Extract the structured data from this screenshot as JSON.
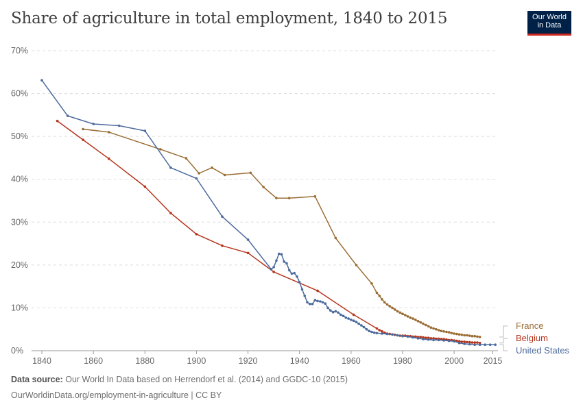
{
  "header": {
    "title": "Share of agriculture in total employment, 1840 to 2015",
    "logo_line1": "Our World",
    "logo_line2": "in Data"
  },
  "footer": {
    "source_label": "Data source:",
    "source_text": "Our World In Data based on Herrendorf et al. (2014) and GGDC-10 (2015)",
    "url_license": "OurWorldinData.org/employment-in-agriculture | CC BY"
  },
  "chart_data": {
    "type": "line",
    "title": "Share of agriculture in total employment, 1840 to 2015",
    "xlim": [
      1836,
      2017
    ],
    "ylim": [
      0,
      70
    ],
    "x_ticks": [
      "1840",
      "1860",
      "1880",
      "1900",
      "1920",
      "1940",
      "1960",
      "1980",
      "2000",
      "2015"
    ],
    "x_tick_values": [
      1840,
      1860,
      1880,
      1900,
      1920,
      1940,
      1960,
      1980,
      2000,
      2015
    ],
    "y_ticks": [
      "0%",
      "10%",
      "20%",
      "30%",
      "40%",
      "50%",
      "60%",
      "70%"
    ],
    "y_tick_values": [
      0,
      10,
      20,
      30,
      40,
      50,
      60,
      70
    ],
    "grid": "horizontal dashed",
    "legend": "right, labels at line ends",
    "series": [
      {
        "name": "France",
        "color": "#9a6d33",
        "points": [
          [
            1856,
            51.7
          ],
          [
            1866,
            51.0
          ],
          [
            1886,
            47.0
          ],
          [
            1896,
            44.9
          ],
          [
            1901,
            41.4
          ],
          [
            1906,
            42.7
          ],
          [
            1911,
            41.0
          ],
          [
            1921,
            41.5
          ],
          [
            1926,
            38.2
          ],
          [
            1931,
            35.6
          ],
          [
            1936,
            35.6
          ],
          [
            1946,
            36.0
          ],
          [
            1954,
            26.3
          ],
          [
            1962,
            20.0
          ],
          [
            1968,
            15.7
          ],
          [
            1970,
            13.5
          ],
          [
            1971,
            12.8
          ],
          [
            1972,
            12.0
          ],
          [
            1973,
            11.3
          ],
          [
            1974,
            10.8
          ],
          [
            1975,
            10.4
          ],
          [
            1976,
            10.0
          ],
          [
            1977,
            9.6
          ],
          [
            1978,
            9.2
          ],
          [
            1979,
            8.9
          ],
          [
            1980,
            8.6
          ],
          [
            1981,
            8.3
          ],
          [
            1982,
            8.0
          ],
          [
            1983,
            7.7
          ],
          [
            1984,
            7.5
          ],
          [
            1985,
            7.2
          ],
          [
            1986,
            6.9
          ],
          [
            1987,
            6.6
          ],
          [
            1988,
            6.3
          ],
          [
            1989,
            6.0
          ],
          [
            1990,
            5.7
          ],
          [
            1991,
            5.4
          ],
          [
            1992,
            5.2
          ],
          [
            1993,
            5.0
          ],
          [
            1994,
            4.8
          ],
          [
            1995,
            4.6
          ],
          [
            1996,
            4.5
          ],
          [
            1997,
            4.4
          ],
          [
            1998,
            4.3
          ],
          [
            1999,
            4.1
          ],
          [
            2000,
            4.0
          ],
          [
            2001,
            3.9
          ],
          [
            2002,
            3.8
          ],
          [
            2003,
            3.7
          ],
          [
            2004,
            3.6
          ],
          [
            2005,
            3.6
          ],
          [
            2006,
            3.5
          ],
          [
            2007,
            3.4
          ],
          [
            2008,
            3.4
          ],
          [
            2009,
            3.3
          ],
          [
            2010,
            3.2
          ]
        ]
      },
      {
        "name": "Belgium",
        "color": "#b5341b",
        "points": [
          [
            1846,
            53.6
          ],
          [
            1856,
            49.2
          ],
          [
            1866,
            44.8
          ],
          [
            1880,
            38.3
          ],
          [
            1890,
            32.1
          ],
          [
            1900,
            27.2
          ],
          [
            1910,
            24.5
          ],
          [
            1920,
            22.8
          ],
          [
            1930,
            18.4
          ],
          [
            1947,
            14.0
          ],
          [
            1961,
            8.4
          ],
          [
            1970,
            5.2
          ],
          [
            1971,
            4.8
          ],
          [
            1972,
            4.5
          ],
          [
            1973,
            4.2
          ],
          [
            1974,
            4.0
          ],
          [
            1975,
            3.9
          ],
          [
            1976,
            3.8
          ],
          [
            1977,
            3.7
          ],
          [
            1978,
            3.6
          ],
          [
            1979,
            3.5
          ],
          [
            1980,
            3.5
          ],
          [
            1981,
            3.5
          ],
          [
            1982,
            3.4
          ],
          [
            1983,
            3.4
          ],
          [
            1984,
            3.3
          ],
          [
            1985,
            3.3
          ],
          [
            1986,
            3.2
          ],
          [
            1987,
            3.2
          ],
          [
            1988,
            3.1
          ],
          [
            1989,
            3.0
          ],
          [
            1990,
            3.0
          ],
          [
            1991,
            2.9
          ],
          [
            1992,
            2.9
          ],
          [
            1993,
            2.8
          ],
          [
            1994,
            2.8
          ],
          [
            1995,
            2.7
          ],
          [
            1996,
            2.7
          ],
          [
            1997,
            2.6
          ],
          [
            1998,
            2.5
          ],
          [
            1999,
            2.5
          ],
          [
            2000,
            2.4
          ],
          [
            2001,
            2.3
          ],
          [
            2002,
            2.2
          ],
          [
            2003,
            2.1
          ],
          [
            2004,
            2.1
          ],
          [
            2005,
            2.0
          ],
          [
            2006,
            2.0
          ],
          [
            2007,
            1.9
          ],
          [
            2008,
            1.9
          ],
          [
            2009,
            1.9
          ],
          [
            2010,
            1.8
          ]
        ]
      },
      {
        "name": "United States",
        "color": "#4c6a9c",
        "points": [
          [
            1840,
            63.1
          ],
          [
            1850,
            54.8
          ],
          [
            1860,
            52.9
          ],
          [
            1870,
            52.5
          ],
          [
            1880,
            51.3
          ],
          [
            1890,
            42.7
          ],
          [
            1900,
            40.2
          ],
          [
            1910,
            31.3
          ],
          [
            1920,
            25.9
          ],
          [
            1929,
            19.0
          ],
          [
            1930,
            19.5
          ],
          [
            1931,
            21.0
          ],
          [
            1932,
            22.6
          ],
          [
            1933,
            22.5
          ],
          [
            1934,
            20.8
          ],
          [
            1935,
            20.4
          ],
          [
            1936,
            18.8
          ],
          [
            1937,
            18.0
          ],
          [
            1938,
            18.1
          ],
          [
            1939,
            17.3
          ],
          [
            1940,
            16.0
          ],
          [
            1941,
            14.3
          ],
          [
            1942,
            12.8
          ],
          [
            1943,
            11.3
          ],
          [
            1944,
            10.9
          ],
          [
            1945,
            10.9
          ],
          [
            1946,
            11.8
          ],
          [
            1947,
            11.6
          ],
          [
            1948,
            11.5
          ],
          [
            1949,
            11.3
          ],
          [
            1950,
            11.0
          ],
          [
            1951,
            10.0
          ],
          [
            1952,
            9.4
          ],
          [
            1953,
            9.0
          ],
          [
            1954,
            9.2
          ],
          [
            1955,
            8.9
          ],
          [
            1956,
            8.4
          ],
          [
            1957,
            8.1
          ],
          [
            1958,
            7.7
          ],
          [
            1959,
            7.5
          ],
          [
            1960,
            7.2
          ],
          [
            1961,
            7.0
          ],
          [
            1962,
            6.7
          ],
          [
            1963,
            6.3
          ],
          [
            1964,
            5.9
          ],
          [
            1965,
            5.5
          ],
          [
            1966,
            5.0
          ],
          [
            1967,
            4.6
          ],
          [
            1968,
            4.4
          ],
          [
            1969,
            4.2
          ],
          [
            1970,
            4.1
          ],
          [
            1972,
            4.0
          ],
          [
            1974,
            3.9
          ],
          [
            1976,
            3.8
          ],
          [
            1978,
            3.6
          ],
          [
            1980,
            3.4
          ],
          [
            1982,
            3.3
          ],
          [
            1984,
            3.1
          ],
          [
            1986,
            2.9
          ],
          [
            1988,
            2.7
          ],
          [
            1990,
            2.6
          ],
          [
            1992,
            2.5
          ],
          [
            1994,
            2.5
          ],
          [
            1996,
            2.4
          ],
          [
            1998,
            2.3
          ],
          [
            2000,
            2.2
          ],
          [
            2002,
            1.8
          ],
          [
            2004,
            1.6
          ],
          [
            2006,
            1.5
          ],
          [
            2008,
            1.4
          ],
          [
            2010,
            1.4
          ],
          [
            2012,
            1.4
          ],
          [
            2014,
            1.4
          ],
          [
            2016,
            1.4
          ]
        ]
      }
    ]
  }
}
